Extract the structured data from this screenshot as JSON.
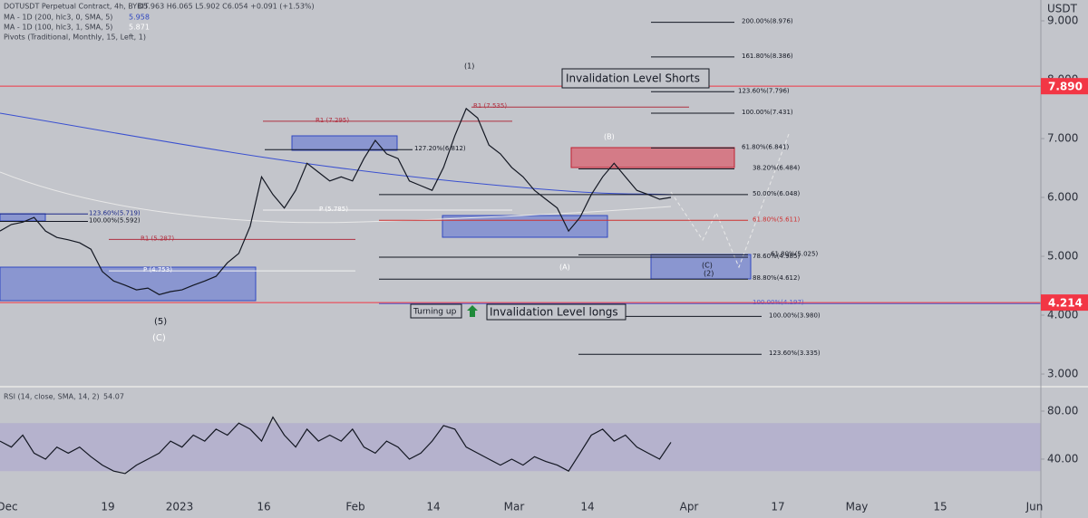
{
  "header": {
    "symbol": "DOTUSDT Perpetual Contract, 4h, BYBIT",
    "ohlc": "O5.963 H6.065 L5.902 C6.054 +0.091 (+1.53%)",
    "ma1": "MA - 1D (200, hlc3, 0, SMA, 5)",
    "ma1_value": "5.958",
    "ma2": "MA - 1D (100, hlc3, 1, SMA, 5)",
    "ma2_value": "5.871",
    "pivots": "Pivots (Traditional, Monthly, 15, Left, 1)",
    "currency": "USDT"
  },
  "chart_data": [
    {
      "type": "line",
      "color": "#131722",
      "values": [
        5.43,
        5.54,
        5.58,
        5.66,
        5.43,
        5.32,
        5.28,
        5.23,
        5.12,
        4.74,
        4.58,
        4.51,
        4.43,
        4.46,
        4.35,
        4.4,
        4.43,
        4.51,
        4.58,
        4.66,
        4.89,
        5.05,
        5.51,
        6.35,
        6.05,
        5.82,
        6.12,
        6.58,
        6.43,
        6.28,
        6.35,
        6.28,
        6.66,
        6.97,
        6.74,
        6.66,
        6.28,
        6.2,
        6.12,
        6.51,
        7.05,
        7.51,
        7.35,
        6.89,
        6.74,
        6.51,
        6.35,
        6.12,
        5.97,
        5.82,
        5.43,
        5.66,
        6.05,
        6.35,
        6.58,
        6.35,
        6.12,
        6.05,
        5.97,
        6.0
      ],
      "ylim": [
        2.785,
        9.354
      ],
      "yticks": [
        {
          "value": 9,
          "label": "9.000"
        },
        {
          "value": 8,
          "label": "8.000"
        },
        {
          "value": 7,
          "label": "7.000"
        },
        {
          "value": 6,
          "label": "6.000"
        },
        {
          "value": 5,
          "label": "5.000"
        },
        {
          "value": 4,
          "label": "4.000"
        },
        {
          "value": 3,
          "label": "3.000"
        }
      ],
      "price_lines": [
        {
          "value": 7.89,
          "label": "7.890",
          "color": "#f23645"
        },
        {
          "value": 4.214,
          "label": "4.214",
          "color": "#f23645"
        }
      ],
      "levels": [
        {
          "value": 8.976,
          "label": "200.00%(8.976)",
          "color": "#131722"
        },
        {
          "value": 8.386,
          "label": "161.80%(8.386)",
          "color": "#131722"
        },
        {
          "value": 7.796,
          "label": "123.60%(7.796)",
          "color": "#131722"
        },
        {
          "value": 7.431,
          "label": "100.00%(7.431)",
          "color": "#131722"
        },
        {
          "value": 6.841,
          "label": "61.80%(6.841)",
          "color": "#131722"
        },
        {
          "value": 6.484,
          "label": "38.20%(6.484)",
          "color": "#131722"
        },
        {
          "value": 6.048,
          "label": "50.00%(6.048)",
          "color": "#131722"
        },
        {
          "value": 5.611,
          "label": "61.80%(5.611)",
          "color": "#d03030"
        },
        {
          "value": 5.025,
          "label": "61.80%(5.025)",
          "color": "#131722"
        },
        {
          "value": 4.985,
          "label": "78.60%(4.985)",
          "color": "#131722"
        },
        {
          "value": 4.612,
          "label": "88.80%(4.612)",
          "color": "#131722"
        },
        {
          "value": 4.197,
          "label": "100.00%(4.197)",
          "color": "#4a5bd0"
        },
        {
          "value": 3.98,
          "label": "100.00%(3.980)",
          "color": "#131722"
        },
        {
          "value": 3.335,
          "label": "123.60%(3.335)",
          "color": "#131722"
        },
        {
          "value": 5.719,
          "label": "123.60%(5.719)",
          "color": "#1c2a8a"
        },
        {
          "value": 5.592,
          "label": "100.00%(5.592)",
          "color": "#131722"
        },
        {
          "value": 6.812,
          "label": "127.20%(6.812)",
          "color": "#131722"
        },
        {
          "value": 7.295,
          "label": "R1 (7.295)",
          "color": "#b03040"
        },
        {
          "value": 5.287,
          "label": "R1 (5.287)",
          "color": "#b03040"
        },
        {
          "value": 5.785,
          "label": "P (5.785)",
          "color": "#f0f0f0"
        },
        {
          "value": 4.753,
          "label": "P (4.753)",
          "color": "#f0f0f0"
        },
        {
          "value": 7.535,
          "label": "R1 (7.535)",
          "color": "#b03040"
        }
      ]
    },
    {
      "type": "line",
      "title": "RSI (14, close, SMA, 14, 2)",
      "value_label": "54.07",
      "color": "#131722",
      "values": [
        55,
        50,
        60,
        45,
        40,
        50,
        45,
        50,
        42,
        35,
        30,
        28,
        35,
        40,
        45,
        55,
        50,
        60,
        55,
        65,
        60,
        70,
        65,
        55,
        75,
        60,
        50,
        65,
        55,
        60,
        55,
        65,
        50,
        45,
        55,
        50,
        40,
        45,
        55,
        68,
        65,
        50,
        45,
        40,
        35,
        40,
        35,
        42,
        38,
        35,
        30,
        45,
        60,
        65,
        55,
        60,
        50,
        45,
        40,
        54
      ],
      "ylim": [
        11.3,
        98.1
      ],
      "band": [
        30,
        70
      ],
      "yticks": [
        {
          "value": 80,
          "label": "80.00"
        },
        {
          "value": 40,
          "label": "40.00"
        }
      ]
    }
  ],
  "x_axis_labels": [
    "Dec",
    "19",
    "2023",
    "16",
    "Feb",
    "14",
    "Mar",
    "14",
    "Apr",
    "17",
    "May",
    "15",
    "Jun"
  ],
  "annotations": {
    "shorts": "Invalidation Level Shorts",
    "longs": "Invalidation Level longs",
    "turning": "Turning up"
  },
  "waves": [
    "(1)",
    "(5)",
    "(C)",
    "(A)",
    "(B)",
    "(C)",
    "(2)"
  ]
}
